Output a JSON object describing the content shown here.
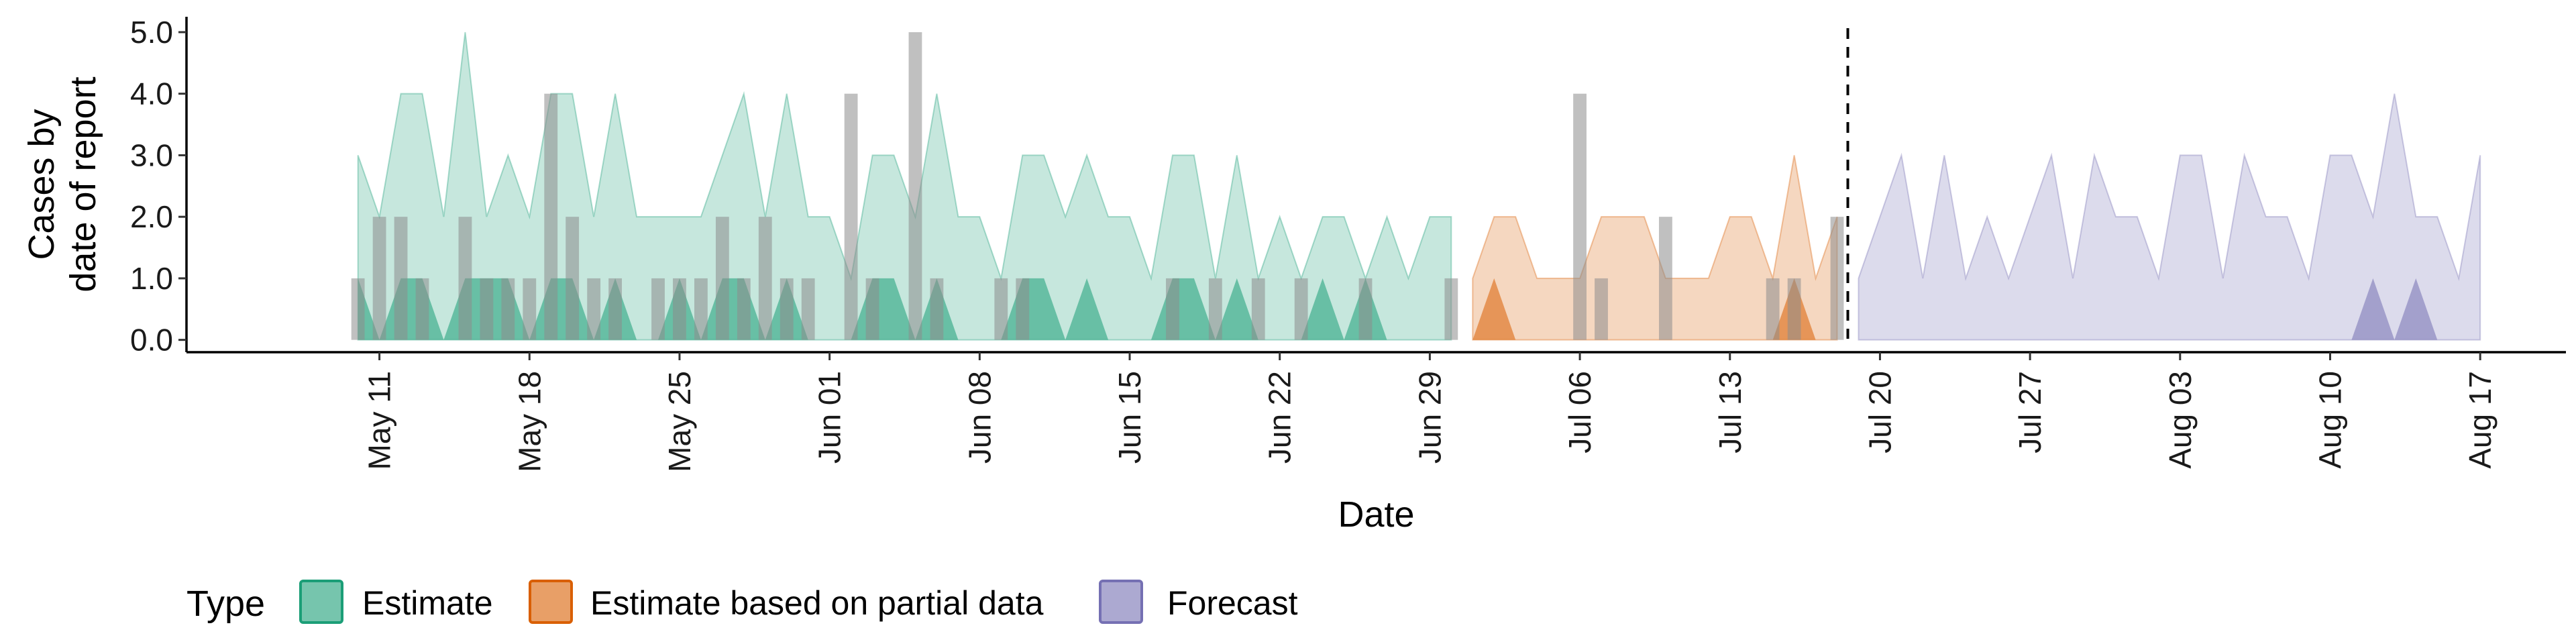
{
  "chart_data": {
    "type": "area",
    "xlabel": "Date",
    "ylabel_lines": [
      "Cases by",
      "date of report"
    ],
    "xlim": [
      "2021-05-02",
      "2021-08-21"
    ],
    "ylim": [
      -0.2,
      5.25
    ],
    "y_ticks": [
      0,
      1,
      2,
      3,
      4,
      5
    ],
    "y_tick_labels": [
      "0.0",
      "1.0",
      "2.0",
      "3.0",
      "4.0",
      "5.0"
    ],
    "x_ticks": [
      "2021-05-11",
      "2021-05-18",
      "2021-05-25",
      "2021-06-01",
      "2021-06-08",
      "2021-06-15",
      "2021-06-22",
      "2021-06-29",
      "2021-07-06",
      "2021-07-13",
      "2021-07-20",
      "2021-07-27",
      "2021-08-03",
      "2021-08-10",
      "2021-08-17"
    ],
    "x_tick_labels": [
      "May 11",
      "May 18",
      "May 25",
      "Jun 01",
      "Jun 08",
      "Jun 15",
      "Jun 22",
      "Jun 29",
      "Jul 06",
      "Jul 13",
      "Jul 20",
      "Jul 27",
      "Aug 03",
      "Aug 10",
      "Aug 17"
    ],
    "forecast_date": "2021-07-18",
    "grid": false,
    "legend": {
      "title": "Type",
      "position": "bottom",
      "entries": [
        {
          "label": "Estimate",
          "color": "#1b9e77"
        },
        {
          "label": "Estimate based on partial data",
          "color": "#d95f02"
        },
        {
          "label": "Forecast",
          "color": "#7570b3"
        }
      ]
    },
    "observed": {
      "color": "#8c8c8c",
      "dates": [
        "2021-05-10",
        "2021-05-11",
        "2021-05-12",
        "2021-05-13",
        "2021-05-15",
        "2021-05-16",
        "2021-05-17",
        "2021-05-18",
        "2021-05-19",
        "2021-05-20",
        "2021-05-21",
        "2021-05-22",
        "2021-05-24",
        "2021-05-25",
        "2021-05-26",
        "2021-05-27",
        "2021-05-28",
        "2021-05-29",
        "2021-05-30",
        "2021-05-31",
        "2021-06-02",
        "2021-06-03",
        "2021-06-05",
        "2021-06-06",
        "2021-06-09",
        "2021-06-10",
        "2021-06-17",
        "2021-06-19",
        "2021-06-21",
        "2021-06-23",
        "2021-06-26",
        "2021-06-30",
        "2021-07-06",
        "2021-07-07",
        "2021-07-10",
        "2021-07-15",
        "2021-07-16",
        "2021-07-18"
      ],
      "values": [
        1,
        2,
        2,
        1,
        2,
        1,
        1,
        1,
        4,
        2,
        1,
        1,
        1,
        1,
        1,
        2,
        1,
        2,
        1,
        1,
        4,
        1,
        5,
        1,
        1,
        1,
        1,
        1,
        1,
        1,
        1,
        1,
        4,
        1,
        2,
        1,
        1,
        2
      ]
    },
    "series": [
      {
        "name": "Estimate",
        "color": "#1b9e77",
        "dates": [
          "2021-05-10",
          "2021-05-11",
          "2021-05-12",
          "2021-05-13",
          "2021-05-14",
          "2021-05-15",
          "2021-05-16",
          "2021-05-17",
          "2021-05-18",
          "2021-05-19",
          "2021-05-20",
          "2021-05-21",
          "2021-05-22",
          "2021-05-23",
          "2021-05-24",
          "2021-05-25",
          "2021-05-26",
          "2021-05-27",
          "2021-05-28",
          "2021-05-29",
          "2021-05-30",
          "2021-05-31",
          "2021-06-01",
          "2021-06-02",
          "2021-06-03",
          "2021-06-04",
          "2021-06-05",
          "2021-06-06",
          "2021-06-07",
          "2021-06-08",
          "2021-06-09",
          "2021-06-10",
          "2021-06-11",
          "2021-06-12",
          "2021-06-13",
          "2021-06-14",
          "2021-06-15",
          "2021-06-16",
          "2021-06-17",
          "2021-06-18",
          "2021-06-19",
          "2021-06-20",
          "2021-06-21",
          "2021-06-22",
          "2021-06-23",
          "2021-06-24",
          "2021-06-25",
          "2021-06-26",
          "2021-06-27",
          "2021-06-28",
          "2021-06-29",
          "2021-06-30"
        ],
        "upper_90": [
          3,
          2,
          4,
          4,
          2,
          5,
          2,
          3,
          2,
          4,
          4,
          2,
          4,
          2,
          2,
          2,
          2,
          3,
          4,
          2,
          4,
          2,
          2,
          1,
          3,
          3,
          2,
          4,
          2,
          2,
          1,
          3,
          3,
          2,
          3,
          2,
          2,
          1,
          3,
          3,
          1,
          3,
          1,
          2,
          1,
          2,
          2,
          1,
          2,
          1,
          2,
          2
        ],
        "upper_50": [
          1,
          0,
          1,
          1,
          0,
          1,
          1,
          1,
          0,
          1,
          1,
          0,
          1,
          0,
          0,
          1,
          0,
          1,
          1,
          0,
          1,
          0,
          0,
          0,
          1,
          1,
          0,
          1,
          0,
          0,
          0,
          1,
          1,
          0,
          1,
          0,
          0,
          0,
          1,
          1,
          0,
          1,
          0,
          0,
          0,
          1,
          0,
          1,
          0,
          0,
          0,
          0
        ]
      },
      {
        "name": "Estimate based on partial data",
        "color": "#d95f02",
        "dates": [
          "2021-07-01",
          "2021-07-02",
          "2021-07-03",
          "2021-07-04",
          "2021-07-05",
          "2021-07-06",
          "2021-07-07",
          "2021-07-08",
          "2021-07-09",
          "2021-07-10",
          "2021-07-11",
          "2021-07-12",
          "2021-07-13",
          "2021-07-14",
          "2021-07-15",
          "2021-07-16",
          "2021-07-17",
          "2021-07-18"
        ],
        "upper_90": [
          1,
          2,
          2,
          1,
          1,
          1,
          2,
          2,
          2,
          1,
          1,
          1,
          2,
          2,
          1,
          3,
          1,
          2
        ],
        "upper_50": [
          0,
          1,
          0,
          0,
          0,
          0,
          0,
          0,
          0,
          0,
          0,
          0,
          0,
          0,
          0,
          1,
          0,
          0
        ]
      },
      {
        "name": "Forecast",
        "color": "#7570b3",
        "dates": [
          "2021-07-19",
          "2021-07-20",
          "2021-07-21",
          "2021-07-22",
          "2021-07-23",
          "2021-07-24",
          "2021-07-25",
          "2021-07-26",
          "2021-07-27",
          "2021-07-28",
          "2021-07-29",
          "2021-07-30",
          "2021-07-31",
          "2021-08-01",
          "2021-08-02",
          "2021-08-03",
          "2021-08-04",
          "2021-08-05",
          "2021-08-06",
          "2021-08-07",
          "2021-08-08",
          "2021-08-09",
          "2021-08-10",
          "2021-08-11",
          "2021-08-12",
          "2021-08-13",
          "2021-08-14",
          "2021-08-15",
          "2021-08-16",
          "2021-08-17"
        ],
        "upper_90": [
          1,
          2,
          3,
          1,
          3,
          1,
          2,
          1,
          2,
          3,
          1,
          3,
          2,
          2,
          1,
          3,
          3,
          1,
          3,
          2,
          2,
          1,
          3,
          3,
          2,
          4,
          2,
          2,
          1,
          3
        ],
        "upper_50": [
          0,
          0,
          0,
          0,
          0,
          0,
          0,
          0,
          0,
          0,
          0,
          0,
          0,
          0,
          0,
          0,
          0,
          0,
          0,
          0,
          0,
          0,
          0,
          0,
          1,
          0,
          1,
          0,
          0,
          0
        ]
      }
    ]
  }
}
